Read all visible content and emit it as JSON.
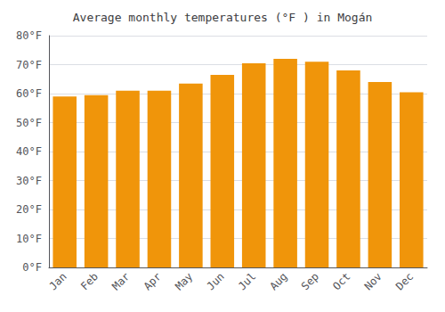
{
  "chart_data": {
    "type": "bar",
    "title": "Average monthly temperatures (°F ) in Mogán",
    "categories": [
      "Jan",
      "Feb",
      "Mar",
      "Apr",
      "May",
      "Jun",
      "Jul",
      "Aug",
      "Sep",
      "Oct",
      "Nov",
      "Dec"
    ],
    "values": [
      59,
      59.5,
      61,
      61,
      63.5,
      66.5,
      70.5,
      72,
      71,
      68,
      64,
      60.5
    ],
    "color": "#F0950A",
    "ylim": [
      0,
      80
    ],
    "yticks": [
      {
        "value": 0,
        "label": "0°F"
      },
      {
        "value": 10,
        "label": "10°F"
      },
      {
        "value": 20,
        "label": "20°F"
      },
      {
        "value": 30,
        "label": "30°F"
      },
      {
        "value": 40,
        "label": "40°F"
      },
      {
        "value": 50,
        "label": "50°F"
      },
      {
        "value": 60,
        "label": "60°F"
      },
      {
        "value": 70,
        "label": "70°F"
      },
      {
        "value": 80,
        "label": "80°F"
      }
    ],
    "grid": true
  }
}
